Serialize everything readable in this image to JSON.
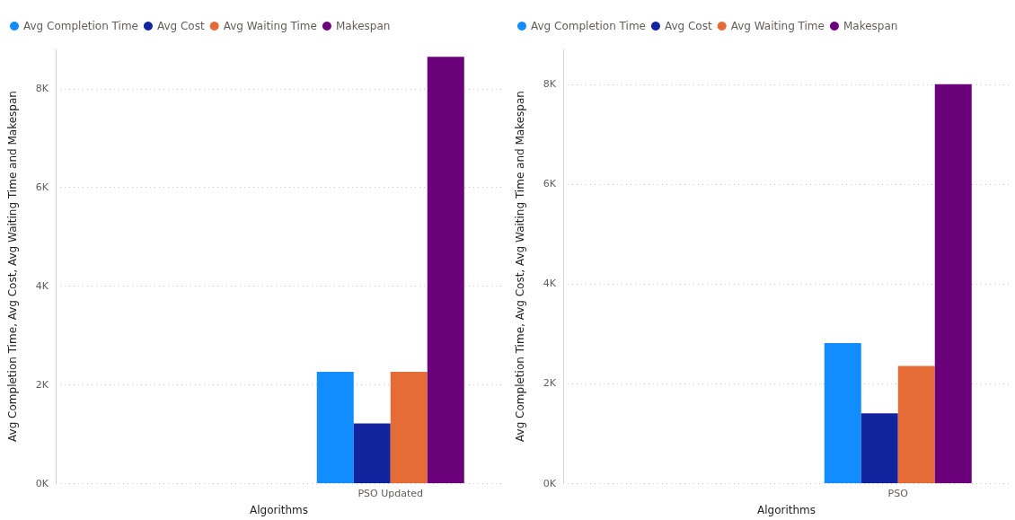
{
  "chart_data": [
    {
      "type": "bar",
      "xlabel": "Algorithms",
      "ylabel": "Avg Completion Time, Avg Cost, Avg Waiting Time and Makespan",
      "categories": [
        null,
        "PSO Updated"
      ],
      "series": [
        {
          "name": "Avg Completion Time",
          "color": "#118dff",
          "values": [
            null,
            2260
          ]
        },
        {
          "name": "Avg Cost",
          "color": "#12239e",
          "values": [
            null,
            1210
          ]
        },
        {
          "name": "Avg Waiting Time",
          "color": "#e66c37",
          "values": [
            null,
            2260
          ]
        },
        {
          "name": "Makespan",
          "color": "#6b007b",
          "values": [
            null,
            8650
          ]
        }
      ],
      "ylim": [
        0,
        8800
      ],
      "yticks": [
        {
          "value": 0,
          "label": "0K"
        },
        {
          "value": 2000,
          "label": "2K"
        },
        {
          "value": 4000,
          "label": "4K"
        },
        {
          "value": 6000,
          "label": "6K"
        },
        {
          "value": 8000,
          "label": "8K"
        }
      ],
      "grid": "y",
      "legend": "top left"
    },
    {
      "type": "bar",
      "xlabel": "Algorithms",
      "ylabel": "Avg Completion Time, Avg Cost, Avg Waiting Time and Makespan",
      "categories": [
        null,
        "PSO"
      ],
      "series": [
        {
          "name": "Avg Completion Time",
          "color": "#118dff",
          "values": [
            null,
            2810
          ]
        },
        {
          "name": "Avg Cost",
          "color": "#12239e",
          "values": [
            null,
            1400
          ]
        },
        {
          "name": "Avg Waiting Time",
          "color": "#e66c37",
          "values": [
            null,
            2350
          ]
        },
        {
          "name": "Makespan",
          "color": "#6b007b",
          "values": [
            null,
            8000
          ]
        }
      ],
      "ylim": [
        0,
        8700
      ],
      "yticks": [
        {
          "value": 0,
          "label": "0K"
        },
        {
          "value": 2000,
          "label": "2K"
        },
        {
          "value": 4000,
          "label": "4K"
        },
        {
          "value": 6000,
          "label": "6K"
        },
        {
          "value": 8000,
          "label": "8K"
        }
      ],
      "grid": "y",
      "legend": "top left"
    }
  ]
}
